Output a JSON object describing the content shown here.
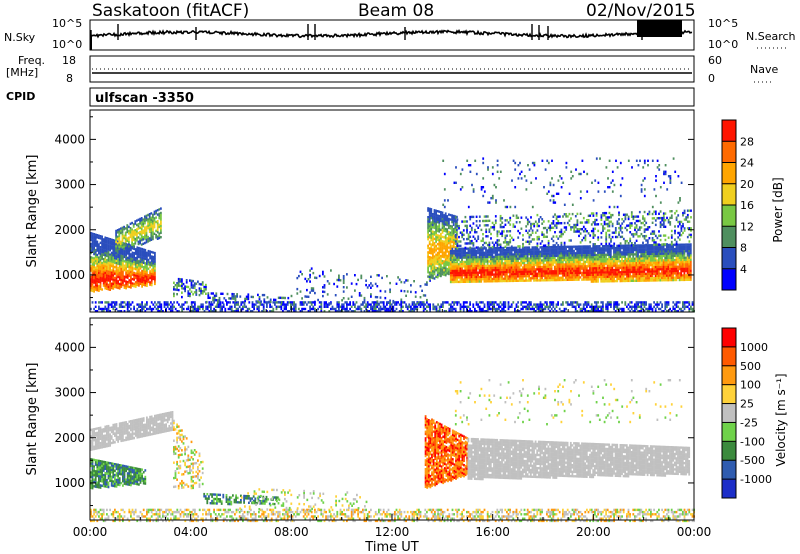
{
  "header": {
    "station": "Saskatoon (fitACF)",
    "beam": "Beam 08",
    "date": "02/Nov/2015"
  },
  "side_labels": {
    "nsky": "N.Sky",
    "nsearch": "N.Search",
    "freq": "Freq.",
    "mhz": "[MHz]",
    "nave": "Nave",
    "cpid": "CPID",
    "cpid_value": "ulfscan -3350"
  },
  "chart_data": [
    {
      "type": "line",
      "title": "N.Sky",
      "right_label": "N.Search",
      "yticks_left": [
        "10^5",
        "10^0"
      ],
      "yticks_right": [
        "10^5",
        "10^0"
      ]
    },
    {
      "type": "line",
      "title": "Freq. [MHz]",
      "right_label": "Nave",
      "yticks_left": [
        "18",
        "8"
      ],
      "yticks_right": [
        "60",
        "0"
      ]
    },
    {
      "type": "heatmap",
      "ylabel": "Slant Range [km]",
      "yticks": [
        1000,
        2000,
        3000,
        4000
      ],
      "ylim": [
        180,
        4650
      ],
      "colorbar": {
        "label": "Power [dB]",
        "ticks": [
          "4",
          "8",
          "12",
          "16",
          "20",
          "24",
          "28"
        ]
      }
    },
    {
      "type": "heatmap",
      "ylabel": "Slant Range [km]",
      "yticks": [
        1000,
        2000,
        3000,
        4000
      ],
      "ylim": [
        180,
        4650
      ],
      "xlabel": "Time UT",
      "xticks": [
        "00:00",
        "04:00",
        "08:00",
        "12:00",
        "16:00",
        "20:00",
        "00:00"
      ],
      "colorbar": {
        "label": "Velocity [m s⁻¹]",
        "ticks": [
          "1000",
          "500",
          "100",
          "25",
          "-25",
          "-100",
          "-500",
          "-1000"
        ]
      }
    }
  ],
  "colors": {
    "power": [
      "#0000ff",
      "#2a4ebd",
      "#4f8f5f",
      "#79c843",
      "#f0cf1f",
      "#ffa500",
      "#ff6a00",
      "#ff1500"
    ],
    "velocity": [
      "#1c2ec8",
      "#2f5cb0",
      "#3b8a3d",
      "#6fd24a",
      "#c0c0c0",
      "#ffd23a",
      "#ff9a10",
      "#ff5a00",
      "#ff0000"
    ]
  }
}
